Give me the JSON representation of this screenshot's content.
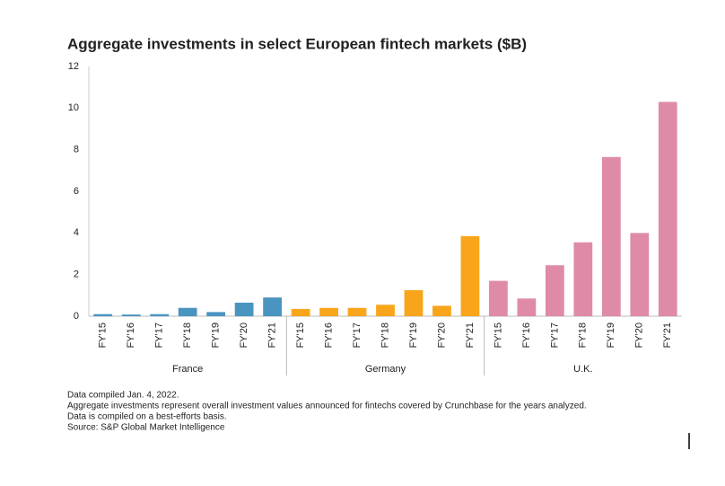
{
  "chart_data": {
    "type": "bar",
    "title": "Aggregate investments in select European fintech markets ($B)",
    "categories": [
      "FY'15",
      "FY'16",
      "FY'17",
      "FY'18",
      "FY'19",
      "FY'20",
      "FY'21"
    ],
    "series": [
      {
        "name": "France",
        "color": "#4a94c0",
        "values": [
          0.1,
          0.08,
          0.1,
          0.4,
          0.2,
          0.65,
          0.9
        ]
      },
      {
        "name": "Germany",
        "color": "#f9a51b",
        "values": [
          0.35,
          0.4,
          0.4,
          0.55,
          1.25,
          0.5,
          3.85
        ]
      },
      {
        "name": "U.K.",
        "color": "#df8ba7",
        "values": [
          1.7,
          0.85,
          2.45,
          3.55,
          7.65,
          4.0,
          10.3
        ]
      }
    ],
    "ylim": [
      0,
      12
    ],
    "yticks": [
      0,
      2,
      4,
      6,
      8,
      10,
      12
    ],
    "grid": false,
    "notes": [
      "Data compiled Jan. 4, 2022.",
      "Aggregate investments represent overall investment values announced for fintechs covered by Crunchbase for the years analyzed.",
      "Data is compiled on a best-efforts basis.",
      "Source: S&P Global Market Intelligence"
    ]
  }
}
